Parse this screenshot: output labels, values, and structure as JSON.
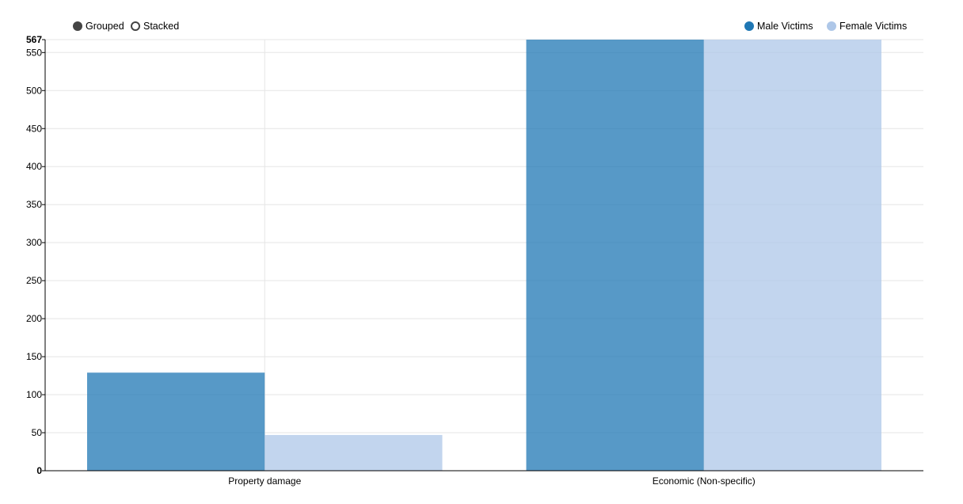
{
  "controls": {
    "grouped_label": "Grouped",
    "stacked_label": "Stacked",
    "selected": "grouped"
  },
  "legend": [
    {
      "label": "Male Victims",
      "color": "#1f77b4"
    },
    {
      "label": "Female Victims",
      "color": "#aec7e8"
    }
  ],
  "chart_data": {
    "type": "bar",
    "mode": "grouped",
    "categories": [
      "Property damage",
      "Economic (Non-specific)"
    ],
    "series": [
      {
        "name": "Male Victims",
        "values": [
          129,
          567
        ],
        "color": "#1f77b4"
      },
      {
        "name": "Female Victims",
        "values": [
          47,
          567
        ],
        "color": "#aec7e8"
      }
    ],
    "ylim": [
      0,
      567
    ],
    "yticks": [
      0,
      50,
      100,
      150,
      200,
      250,
      300,
      350,
      400,
      450,
      500,
      550,
      567
    ],
    "grid": true,
    "legend_position": "top-right"
  }
}
